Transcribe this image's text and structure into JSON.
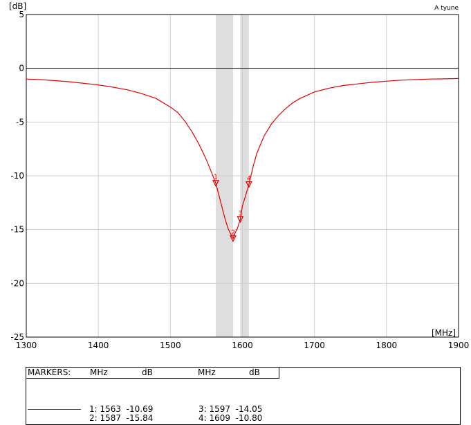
{
  "chart": {
    "y_unit": "[dB]",
    "x_unit": "[MHz]",
    "title_right": "A tyune"
  },
  "chart_data": {
    "type": "line",
    "title": "",
    "xlabel": "[MHz]",
    "ylabel": "[dB]",
    "xlim": [
      1300,
      1900
    ],
    "ylim": [
      -25,
      5
    ],
    "x_ticks": [
      1300,
      1400,
      1500,
      1600,
      1700,
      1800,
      1900
    ],
    "y_ticks": [
      5,
      0,
      -5,
      -10,
      -15,
      -20,
      -25
    ],
    "grid": true,
    "reference_line_y": 0,
    "shaded_bands": [
      [
        1563,
        1587
      ],
      [
        1597,
        1609
      ]
    ],
    "series": [
      {
        "color": "#e00000",
        "x": [
          1300,
          1320,
          1340,
          1360,
          1380,
          1400,
          1420,
          1440,
          1460,
          1480,
          1500,
          1510,
          1520,
          1530,
          1540,
          1550,
          1556,
          1563,
          1570,
          1575,
          1580,
          1585,
          1587,
          1590,
          1593,
          1597,
          1600,
          1605,
          1609,
          1615,
          1620,
          1630,
          1640,
          1650,
          1660,
          1670,
          1680,
          1700,
          1720,
          1740,
          1760,
          1780,
          1800,
          1820,
          1840,
          1860,
          1880,
          1900
        ],
        "y": [
          -1.0,
          -1.05,
          -1.15,
          -1.25,
          -1.4,
          -1.55,
          -1.75,
          -2.0,
          -2.35,
          -2.8,
          -3.6,
          -4.1,
          -4.9,
          -5.9,
          -7.1,
          -8.5,
          -9.5,
          -10.69,
          -12.5,
          -13.8,
          -14.9,
          -15.6,
          -15.84,
          -15.3,
          -14.9,
          -14.05,
          -12.8,
          -11.7,
          -10.8,
          -9.1,
          -7.9,
          -6.3,
          -5.2,
          -4.4,
          -3.75,
          -3.2,
          -2.8,
          -2.2,
          -1.85,
          -1.6,
          -1.45,
          -1.3,
          -1.2,
          -1.1,
          -1.05,
          -1.0,
          -0.98,
          -0.95
        ]
      }
    ],
    "markers": [
      {
        "id": "1",
        "x": 1563,
        "y": -10.69
      },
      {
        "id": "2",
        "x": 1587,
        "y": -15.84
      },
      {
        "id": "3",
        "x": 1597,
        "y": -14.05
      },
      {
        "id": "4",
        "x": 1609,
        "y": -10.8
      }
    ]
  },
  "marker_table": {
    "header": {
      "label": "MARKERS:",
      "mhz1": "MHz",
      "db1": "dB",
      "mhz2": "MHz",
      "db2": "dB"
    },
    "rows": [
      {
        "left": "1: 1563  -10.69",
        "right": "3: 1597  -14.05"
      },
      {
        "left": "2: 1587  -15.84",
        "right": "4: 1609  -10.80"
      }
    ]
  }
}
